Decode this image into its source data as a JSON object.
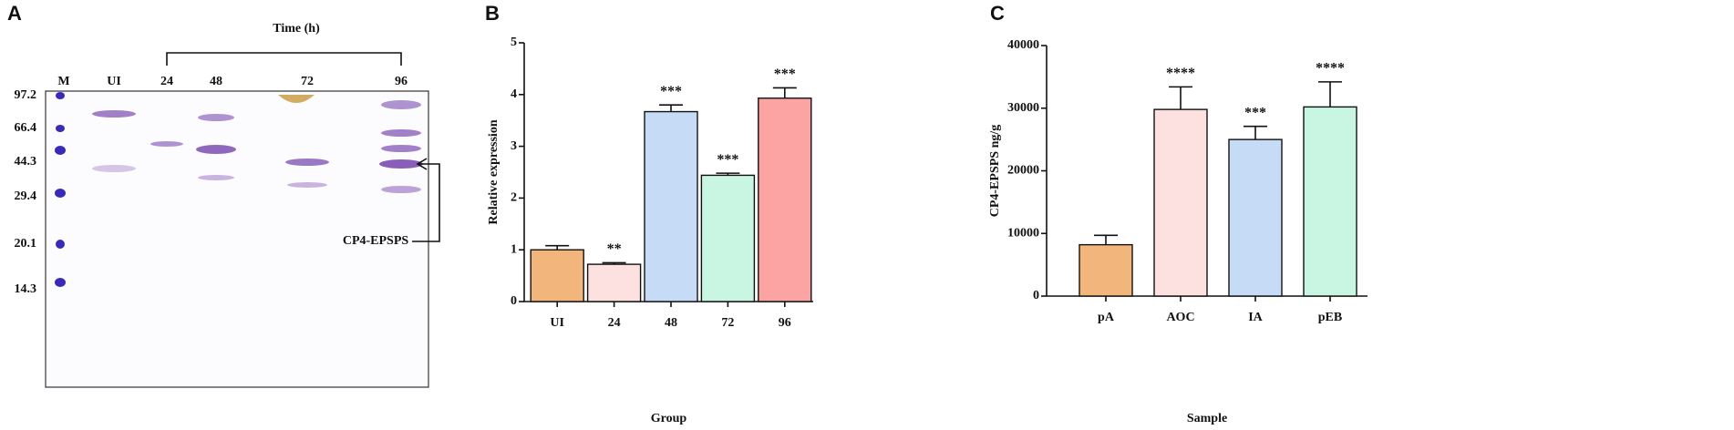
{
  "gel": {
    "panel": "A",
    "title": "Time (h)",
    "lanes": [
      "M",
      "UI",
      "24",
      "48",
      "72",
      "96"
    ],
    "markers": [
      "97.2",
      "66.4",
      "44.3",
      "29.4",
      "20.1",
      "14.3"
    ],
    "arrow_label": "CP4-EPSPS"
  },
  "chart_data": [
    {
      "type": "bar",
      "panel": "B",
      "ylabel": "Relative expression",
      "xlabel": "Group",
      "categories": [
        "UI",
        "24",
        "48",
        "72",
        "96"
      ],
      "values": [
        1.0,
        0.72,
        3.67,
        2.44,
        3.93
      ],
      "errors": [
        0.08,
        0.03,
        0.13,
        0.04,
        0.2
      ],
      "annotations": [
        null,
        "**",
        "***",
        "***",
        "***"
      ],
      "colors": [
        "#f2b57c",
        "#fde0e0",
        "#c6dcf6",
        "#c9f5e3",
        "#fca4a4"
      ],
      "ylim": [
        0,
        5
      ],
      "yticks": [
        0,
        1,
        2,
        3,
        4,
        5
      ]
    },
    {
      "type": "bar",
      "panel": "C",
      "ylabel": "CP4-EPSPS ng/g",
      "xlabel": "Sample",
      "categories": [
        "pA",
        "AOC",
        "IA",
        "pEB"
      ],
      "values": [
        8200,
        29800,
        25000,
        30200
      ],
      "errors": [
        1500,
        3600,
        2100,
        4000
      ],
      "annotations": [
        null,
        "****",
        "***",
        "****"
      ],
      "colors": [
        "#f2b57c",
        "#fde0e0",
        "#c6dcf6",
        "#c9f5e3"
      ],
      "ylim": [
        0,
        40000
      ],
      "yticks": [
        0,
        10000,
        20000,
        30000,
        40000
      ]
    }
  ]
}
